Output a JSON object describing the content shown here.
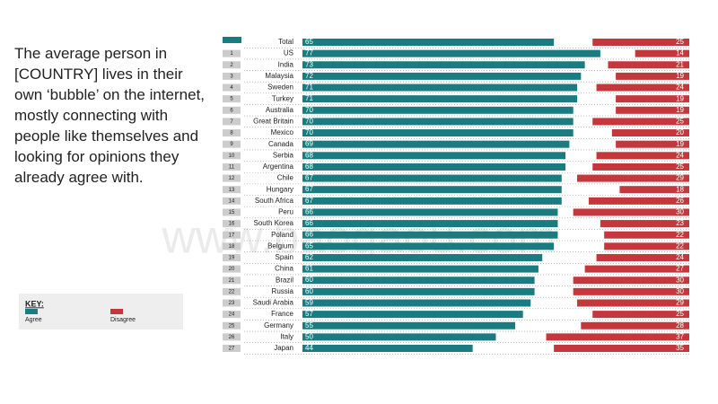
{
  "chart_data": {
    "type": "bar",
    "orientation": "horizontal",
    "intro_text": "The average person in [COUNTRY] lives in their own ‘bubble’ on the internet, mostly connecting with people like themselves and looking for opinions they already agree with.",
    "watermark": "www.baogao8.com",
    "key_title": "KEY:",
    "categories": [
      "Total",
      "US",
      "India",
      "Malaysia",
      "Sweden",
      "Turkey",
      "Australia",
      "Great Britain",
      "Mexico",
      "Canada",
      "Serbia",
      "Argentina",
      "Chile",
      "Hungary",
      "South Africa",
      "Peru",
      "South Korea",
      "Poland",
      "Belgium",
      "Spain",
      "China",
      "Brazil",
      "Russia",
      "Saudi Arabia",
      "France",
      "Germany",
      "Italy",
      "Japan"
    ],
    "ranks": [
      null,
      "1",
      "2",
      "3",
      "4",
      "5",
      "6",
      "7",
      "8",
      "9",
      "10",
      "11",
      "12",
      "13",
      "14",
      "15",
      "16",
      "17",
      "18",
      "19",
      "20",
      "21",
      "22",
      "23",
      "24",
      "25",
      "26",
      "27"
    ],
    "series": [
      {
        "name": "Agree",
        "color": "#1a7b80",
        "values": [
          65,
          77,
          73,
          72,
          71,
          71,
          70,
          70,
          70,
          69,
          68,
          68,
          67,
          67,
          67,
          66,
          66,
          66,
          65,
          62,
          61,
          60,
          60,
          59,
          57,
          55,
          50,
          44
        ]
      },
      {
        "name": "Disagree",
        "color": "#c4373c",
        "values": [
          25,
          14,
          21,
          19,
          24,
          19,
          19,
          25,
          20,
          19,
          24,
          25,
          29,
          18,
          26,
          30,
          23,
          22,
          22,
          24,
          27,
          30,
          30,
          29,
          25,
          28,
          37,
          35
        ]
      }
    ],
    "xlim": [
      0,
      100
    ]
  }
}
